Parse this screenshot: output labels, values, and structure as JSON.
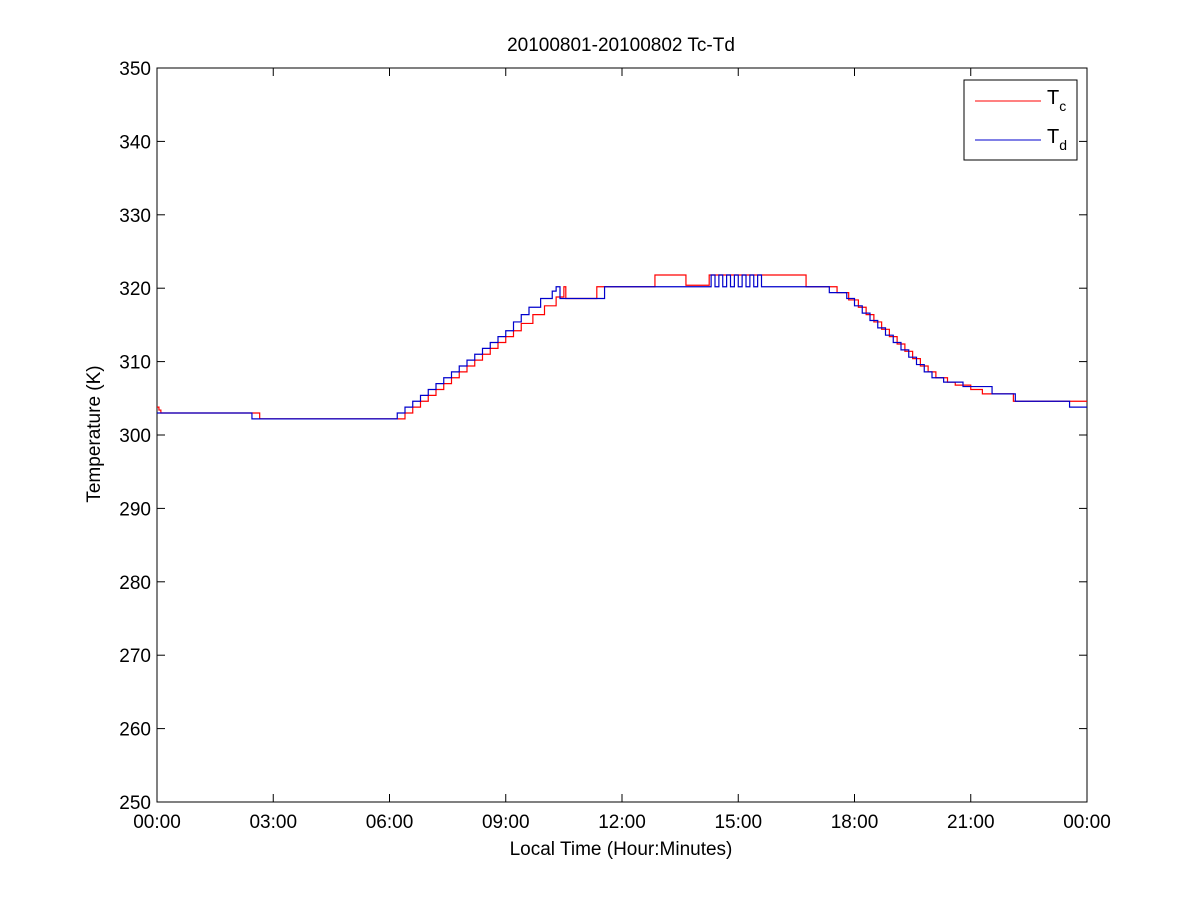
{
  "chart_data": {
    "type": "line",
    "title": "20100801-20100802 Tc-Td",
    "xlabel": "Local Time (Hour:Minutes)",
    "ylabel": "Temperature (K)",
    "xlim": [
      "00:00",
      "00:00"
    ],
    "xlim_hours": [
      0,
      24
    ],
    "ylim": [
      250,
      350
    ],
    "x_ticks": [
      {
        "value": 0,
        "label": "00:00"
      },
      {
        "value": 3,
        "label": "03:00"
      },
      {
        "value": 6,
        "label": "06:00"
      },
      {
        "value": 9,
        "label": "09:00"
      },
      {
        "value": 12,
        "label": "12:00"
      },
      {
        "value": 15,
        "label": "15:00"
      },
      {
        "value": 18,
        "label": "18:00"
      },
      {
        "value": 21,
        "label": "21:00"
      },
      {
        "value": 24,
        "label": "00:00"
      }
    ],
    "y_ticks": [
      250,
      260,
      270,
      280,
      290,
      300,
      310,
      320,
      330,
      340,
      350
    ],
    "y_tick_labels": [
      "250",
      "260",
      "270",
      "280",
      "290",
      "300",
      "310",
      "320",
      "330",
      "340",
      "350"
    ],
    "grid": false,
    "legend_position": "top-right",
    "series": [
      {
        "name": "T",
        "subscript": "c",
        "color": "#ff0000",
        "x_hours": [
          0.0,
          0.05,
          0.1,
          2.6,
          2.65,
          6.1,
          6.4,
          6.6,
          6.8,
          7.0,
          7.2,
          7.4,
          7.6,
          7.8,
          8.0,
          8.2,
          8.4,
          8.6,
          8.8,
          9.0,
          9.2,
          9.4,
          9.7,
          10.0,
          10.3,
          10.5,
          10.55,
          11.3,
          11.35,
          12.8,
          12.85,
          13.6,
          13.65,
          14.2,
          14.25,
          16.7,
          16.75,
          17.5,
          17.55,
          17.85,
          18.1,
          18.3,
          18.5,
          18.7,
          18.9,
          19.1,
          19.3,
          19.5,
          19.7,
          19.9,
          20.1,
          20.4,
          20.6,
          21.0,
          21.3,
          22.0,
          22.1,
          23.4,
          23.45,
          24.0
        ],
        "y_values": [
          303.8,
          303.4,
          303.0,
          303.0,
          302.2,
          302.2,
          303.0,
          303.8,
          304.6,
          305.4,
          306.2,
          307.0,
          307.8,
          308.6,
          309.4,
          310.2,
          311.0,
          311.8,
          312.6,
          313.4,
          314.2,
          315.2,
          316.4,
          317.6,
          318.8,
          320.2,
          318.6,
          318.6,
          320.2,
          320.2,
          321.8,
          321.8,
          320.4,
          320.4,
          321.8,
          321.8,
          320.2,
          320.2,
          319.4,
          318.4,
          317.4,
          316.4,
          315.4,
          314.4,
          313.4,
          312.4,
          311.4,
          310.4,
          309.4,
          308.6,
          307.8,
          307.2,
          306.8,
          306.2,
          305.6,
          305.6,
          304.6,
          304.6,
          304.6,
          304.6
        ]
      },
      {
        "name": "T",
        "subscript": "d",
        "color": "#0000cc",
        "x_hours": [
          0.0,
          2.4,
          2.45,
          6.0,
          6.2,
          6.4,
          6.6,
          6.8,
          7.0,
          7.2,
          7.4,
          7.6,
          7.8,
          8.0,
          8.2,
          8.4,
          8.6,
          8.8,
          9.0,
          9.2,
          9.4,
          9.6,
          9.9,
          10.2,
          10.3,
          10.4,
          10.45,
          11.5,
          11.55,
          14.2,
          14.3,
          14.4,
          14.5,
          14.6,
          14.7,
          14.8,
          14.9,
          15.0,
          15.1,
          15.2,
          15.3,
          15.4,
          15.5,
          15.6,
          17.3,
          17.35,
          17.8,
          18.0,
          18.2,
          18.4,
          18.6,
          18.8,
          19.0,
          19.2,
          19.4,
          19.6,
          19.8,
          20.0,
          20.3,
          20.8,
          21.5,
          21.55,
          22.1,
          22.15,
          23.5,
          23.55,
          24.0
        ],
        "y_values": [
          303.0,
          303.0,
          302.2,
          302.2,
          303.0,
          303.8,
          304.6,
          305.4,
          306.2,
          307.0,
          307.8,
          308.6,
          309.4,
          310.2,
          311.0,
          311.8,
          312.6,
          313.4,
          314.2,
          315.4,
          316.4,
          317.4,
          318.6,
          319.6,
          320.2,
          318.6,
          318.6,
          318.6,
          320.2,
          320.2,
          321.8,
          320.2,
          321.8,
          320.2,
          321.8,
          320.2,
          321.8,
          320.2,
          321.8,
          320.2,
          321.8,
          320.2,
          321.8,
          320.2,
          320.2,
          319.4,
          318.6,
          317.6,
          316.6,
          315.6,
          314.6,
          313.6,
          312.6,
          311.6,
          310.6,
          309.6,
          308.6,
          307.8,
          307.2,
          306.6,
          306.6,
          305.6,
          305.6,
          304.6,
          304.6,
          303.8,
          303.8
        ]
      }
    ]
  }
}
